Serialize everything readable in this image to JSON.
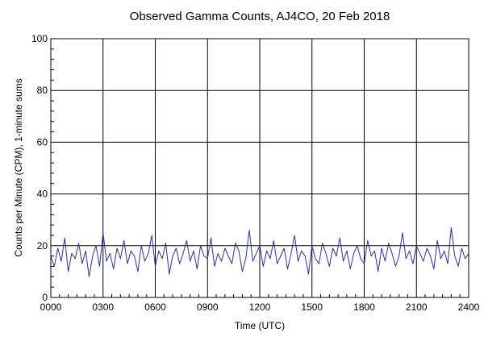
{
  "chart_data": {
    "type": "line",
    "title": "Observed Gamma Counts, AJ4CO, 20 Feb 2018",
    "xlabel": "Time (UTC)",
    "ylabel": "Counts per Minute (CPM), 1-minute sums",
    "xlim": [
      0,
      1440
    ],
    "ylim": [
      0,
      100
    ],
    "grid": true,
    "x_unit": "minutes since 0000 UTC",
    "x_ticks": [
      {
        "value": 0,
        "label": "0000"
      },
      {
        "value": 180,
        "label": "0300"
      },
      {
        "value": 360,
        "label": "0600"
      },
      {
        "value": 540,
        "label": "0900"
      },
      {
        "value": 720,
        "label": "1200"
      },
      {
        "value": 900,
        "label": "1500"
      },
      {
        "value": 1080,
        "label": "1800"
      },
      {
        "value": 1260,
        "label": "2100"
      },
      {
        "value": 1440,
        "label": "2400"
      }
    ],
    "y_ticks": [
      {
        "value": 0,
        "label": "0"
      },
      {
        "value": 20,
        "label": "20"
      },
      {
        "value": 40,
        "label": "40"
      },
      {
        "value": 60,
        "label": "60"
      },
      {
        "value": 80,
        "label": "80"
      },
      {
        "value": 100,
        "label": "100"
      }
    ],
    "series": [
      {
        "color": "#2e3192",
        "x": [
          0,
          12,
          24,
          36,
          48,
          60,
          72,
          84,
          96,
          108,
          120,
          132,
          144,
          156,
          168,
          180,
          192,
          204,
          216,
          228,
          240,
          252,
          264,
          276,
          288,
          300,
          312,
          324,
          336,
          348,
          360,
          372,
          384,
          396,
          408,
          420,
          432,
          444,
          456,
          468,
          480,
          492,
          504,
          516,
          528,
          540,
          552,
          564,
          576,
          588,
          600,
          612,
          624,
          636,
          648,
          660,
          672,
          684,
          696,
          708,
          720,
          732,
          744,
          756,
          768,
          780,
          792,
          804,
          816,
          828,
          840,
          852,
          864,
          876,
          888,
          900,
          912,
          924,
          936,
          948,
          960,
          972,
          984,
          996,
          1008,
          1020,
          1032,
          1044,
          1056,
          1068,
          1080,
          1092,
          1104,
          1116,
          1128,
          1140,
          1152,
          1164,
          1176,
          1188,
          1200,
          1212,
          1224,
          1236,
          1248,
          1260,
          1272,
          1284,
          1296,
          1308,
          1320,
          1332,
          1344,
          1356,
          1368,
          1380,
          1392,
          1404,
          1416,
          1428,
          1440
        ],
        "values": [
          16,
          12,
          19,
          14,
          23,
          10,
          17,
          15,
          21,
          13,
          18,
          8,
          16,
          20,
          12,
          25,
          14,
          17,
          11,
          19,
          15,
          22,
          13,
          18,
          16,
          10,
          20,
          14,
          17,
          24,
          12,
          18,
          15,
          21,
          9,
          16,
          19,
          13,
          17,
          22,
          14,
          18,
          11,
          20,
          16,
          15,
          23,
          12,
          17,
          14,
          19,
          16,
          13,
          21,
          18,
          10,
          15,
          26,
          14,
          17,
          20,
          12,
          18,
          15,
          22,
          13,
          16,
          19,
          11,
          17,
          24,
          14,
          18,
          16,
          9,
          20,
          15,
          13,
          21,
          17,
          12,
          19,
          16,
          23,
          14,
          18,
          11,
          17,
          20,
          15,
          13,
          22,
          16,
          18,
          10,
          19,
          14,
          21,
          17,
          12,
          16,
          25,
          15,
          18,
          13,
          20,
          17,
          14,
          19,
          16,
          11,
          22,
          15,
          18,
          13,
          27,
          16,
          12,
          19,
          15,
          17
        ]
      }
    ]
  }
}
